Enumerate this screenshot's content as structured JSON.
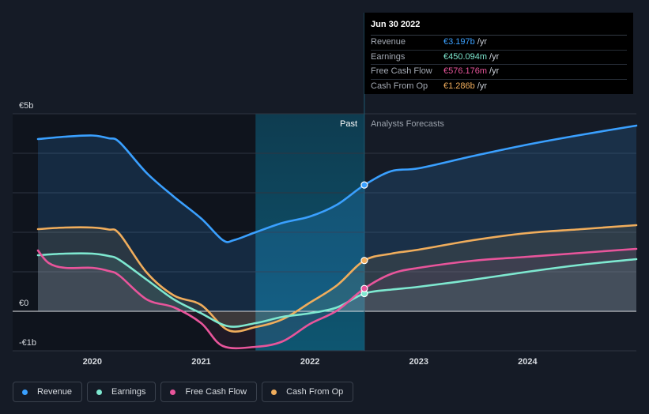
{
  "tooltip": {
    "date": "Jun 30 2022",
    "rows": [
      {
        "label": "Revenue",
        "value": "€3.197b",
        "unit": "/yr",
        "color": "#3aa0ff"
      },
      {
        "label": "Earnings",
        "value": "€450.094m",
        "unit": "/yr",
        "color": "#7ee8d0"
      },
      {
        "label": "Free Cash Flow",
        "value": "€576.176m",
        "unit": "/yr",
        "color": "#e8559b"
      },
      {
        "label": "Cash From Op",
        "value": "€1.286b",
        "unit": "/yr",
        "color": "#f0ad5c"
      }
    ]
  },
  "labels": {
    "past": "Past",
    "forecast": "Analysts Forecasts"
  },
  "legend": [
    {
      "label": "Revenue",
      "color": "#3aa0ff"
    },
    {
      "label": "Earnings",
      "color": "#7ee8d0"
    },
    {
      "label": "Free Cash Flow",
      "color": "#e8559b"
    },
    {
      "label": "Cash From Op",
      "color": "#f0ad5c"
    }
  ],
  "chart_data": {
    "type": "line",
    "ylim": [
      -1,
      5
    ],
    "xlim": [
      2019.5,
      2025.0
    ],
    "y_ticks": [
      {
        "value": 5,
        "label": "€5b"
      },
      {
        "value": 0,
        "label": "€0"
      },
      {
        "value": -1,
        "label": "-€1b"
      }
    ],
    "x_ticks": [
      {
        "value": 2020,
        "label": "2020"
      },
      {
        "value": 2021,
        "label": "2021"
      },
      {
        "value": 2022,
        "label": "2022"
      },
      {
        "value": 2023,
        "label": "2023"
      },
      {
        "value": 2024,
        "label": "2024"
      }
    ],
    "highlight_range": [
      2021.5,
      2022.5
    ],
    "divider_x": 2022.5,
    "series": [
      {
        "name": "Revenue",
        "color": "#3aa0ff",
        "fill": true,
        "marker_x": 2022.5,
        "x": [
          2019.5,
          2019.75,
          2020.0,
          2020.15,
          2020.25,
          2020.5,
          2020.75,
          2021.0,
          2021.2,
          2021.3,
          2021.5,
          2021.75,
          2022.0,
          2022.25,
          2022.5,
          2022.75,
          2023.0,
          2023.5,
          2024.0,
          2024.5,
          2025.0
        ],
        "values": [
          4.36,
          4.42,
          4.45,
          4.38,
          4.28,
          3.5,
          2.9,
          2.35,
          1.8,
          1.8,
          2.0,
          2.24,
          2.4,
          2.7,
          3.197,
          3.55,
          3.62,
          3.93,
          4.22,
          4.47,
          4.7
        ]
      },
      {
        "name": "Cash From Op",
        "color": "#f0ad5c",
        "fill": true,
        "marker_x": 2022.5,
        "x": [
          2019.5,
          2019.75,
          2020.0,
          2020.15,
          2020.25,
          2020.5,
          2020.75,
          2021.0,
          2021.25,
          2021.5,
          2021.75,
          2022.0,
          2022.25,
          2022.5,
          2022.75,
          2023.0,
          2023.5,
          2024.0,
          2024.5,
          2025.0
        ],
        "values": [
          2.08,
          2.12,
          2.12,
          2.07,
          1.96,
          0.98,
          0.4,
          0.16,
          -0.48,
          -0.4,
          -0.2,
          0.22,
          0.66,
          1.286,
          1.46,
          1.56,
          1.8,
          1.98,
          2.08,
          2.18
        ]
      },
      {
        "name": "Earnings",
        "color": "#7ee8d0",
        "fill": true,
        "marker_x": 2022.5,
        "x": [
          2019.5,
          2019.75,
          2020.0,
          2020.15,
          2020.25,
          2020.5,
          2020.75,
          2021.0,
          2021.25,
          2021.5,
          2021.75,
          2022.0,
          2022.25,
          2022.5,
          2022.75,
          2023.0,
          2023.5,
          2024.0,
          2024.5,
          2025.0
        ],
        "values": [
          1.42,
          1.46,
          1.46,
          1.4,
          1.3,
          0.8,
          0.3,
          -0.05,
          -0.38,
          -0.3,
          -0.14,
          -0.05,
          0.1,
          0.45,
          0.55,
          0.62,
          0.8,
          1.0,
          1.18,
          1.32
        ]
      },
      {
        "name": "Free Cash Flow",
        "color": "#e8559b",
        "fill": false,
        "marker_x": 2022.5,
        "x": [
          2019.5,
          2019.6,
          2019.75,
          2020.0,
          2020.15,
          2020.25,
          2020.5,
          2020.75,
          2021.0,
          2021.2,
          2021.5,
          2021.75,
          2022.0,
          2022.25,
          2022.5,
          2022.75,
          2023.0,
          2023.5,
          2024.0,
          2024.5,
          2025.0
        ],
        "values": [
          1.54,
          1.22,
          1.1,
          1.1,
          1.02,
          0.9,
          0.3,
          0.1,
          -0.3,
          -0.88,
          -0.9,
          -0.76,
          -0.32,
          0.02,
          0.576,
          0.95,
          1.1,
          1.28,
          1.38,
          1.48,
          1.58
        ]
      }
    ]
  }
}
